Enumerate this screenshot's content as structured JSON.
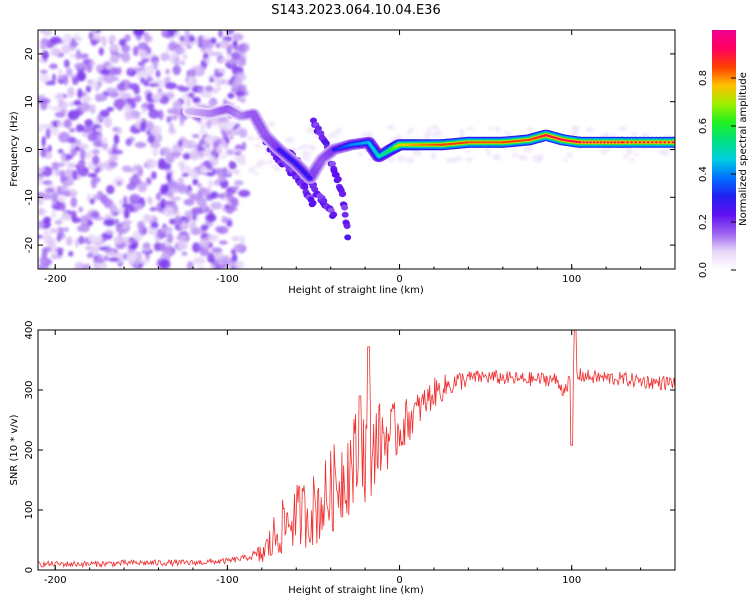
{
  "title": "S143.2023.064.10.04.E36",
  "chart_data": [
    {
      "type": "heatmap",
      "xlabel": "Height of straight line (km)",
      "ylabel": "Frequency (Hz)",
      "xlim": [
        -210,
        160
      ],
      "ylim": [
        -25,
        25
      ],
      "xticks": [
        -200,
        -100,
        0,
        100
      ],
      "yticks": [
        -20,
        -10,
        0,
        10,
        20
      ],
      "colorbar": {
        "label": "Normalized spectral amplitude",
        "range": [
          0,
          1
        ],
        "ticks": [
          0.0,
          0.2,
          0.4,
          0.6,
          0.8
        ],
        "colors": [
          "#ffffff",
          "#e8d8f8",
          "#9a60f0",
          "#6010f0",
          "#2020f0",
          "#0070ff",
          "#00d0e0",
          "#00e080",
          "#20f020",
          "#a0f000",
          "#ffc000",
          "#ff4000",
          "#ff0060",
          "#f00090"
        ]
      },
      "ridge": [
        {
          "x": -122,
          "y": 8,
          "v": 0.15
        },
        {
          "x": -110,
          "y": 7.5,
          "v": 0.2
        },
        {
          "x": -100,
          "y": 8.5,
          "v": 0.25
        },
        {
          "x": -92,
          "y": 7,
          "v": 0.2
        },
        {
          "x": -85,
          "y": 7.5,
          "v": 0.25
        },
        {
          "x": -78,
          "y": 3,
          "v": 0.25
        },
        {
          "x": -70,
          "y": 0,
          "v": 0.3
        },
        {
          "x": -60,
          "y": -3,
          "v": 0.3
        },
        {
          "x": -52,
          "y": -6,
          "v": 0.3
        },
        {
          "x": -45,
          "y": -2,
          "v": 0.25
        },
        {
          "x": -38,
          "y": 0,
          "v": 0.3
        },
        {
          "x": -28,
          "y": 1,
          "v": 0.4
        },
        {
          "x": -18,
          "y": 1.5,
          "v": 0.45
        },
        {
          "x": -12,
          "y": -1.5,
          "v": 0.5
        },
        {
          "x": -5,
          "y": 0,
          "v": 0.6
        },
        {
          "x": 0,
          "y": 1,
          "v": 0.75
        },
        {
          "x": 10,
          "y": 1,
          "v": 0.8
        },
        {
          "x": 25,
          "y": 1,
          "v": 0.85
        },
        {
          "x": 40,
          "y": 1.5,
          "v": 0.85
        },
        {
          "x": 60,
          "y": 1.5,
          "v": 0.85
        },
        {
          "x": 75,
          "y": 2,
          "v": 0.85
        },
        {
          "x": 85,
          "y": 3,
          "v": 0.9
        },
        {
          "x": 95,
          "y": 2,
          "v": 0.9
        },
        {
          "x": 105,
          "y": 1.5,
          "v": 0.9
        },
        {
          "x": 130,
          "y": 1.5,
          "v": 0.9
        },
        {
          "x": 160,
          "y": 1.5,
          "v": 0.9
        }
      ],
      "branches": [
        {
          "x": [
            -80,
            -70,
            -62,
            -55,
            -50
          ],
          "y": [
            3,
            -2,
            -5,
            -8,
            -12
          ]
        },
        {
          "x": [
            -65,
            -57,
            -50,
            -44,
            -38
          ],
          "y": [
            0,
            -4,
            -8,
            -11,
            -14
          ]
        },
        {
          "x": [
            -50,
            -44,
            -38,
            -33,
            -30
          ],
          "y": [
            6,
            2,
            -4,
            -10,
            -18
          ]
        }
      ]
    },
    {
      "type": "line",
      "xlabel": "Height of straight line (km)",
      "ylabel": "SNR (10 * v/v)",
      "xlim": [
        -210,
        160
      ],
      "ylim": [
        0,
        400
      ],
      "xticks": [
        -200,
        -100,
        0,
        100
      ],
      "yticks": [
        0,
        100,
        200,
        300,
        400
      ],
      "color": "#f03030",
      "x": [
        -210,
        -180,
        -150,
        -120,
        -100,
        -90,
        -80,
        -75,
        -70,
        -65,
        -60,
        -55,
        -50,
        -45,
        -40,
        -35,
        -30,
        -25,
        -20,
        -15,
        -10,
        -5,
        0,
        5,
        10,
        15,
        20,
        30,
        40,
        50,
        60,
        70,
        80,
        90,
        95,
        100,
        105,
        110,
        120,
        130,
        140,
        150,
        160
      ],
      "y": [
        10,
        10,
        12,
        12,
        15,
        20,
        25,
        45,
        65,
        80,
        90,
        95,
        100,
        110,
        130,
        150,
        170,
        185,
        195,
        210,
        220,
        225,
        235,
        250,
        265,
        280,
        295,
        310,
        320,
        322,
        320,
        318,
        318,
        318,
        300,
        320,
        325,
        322,
        320,
        318,
        315,
        312,
        312
      ],
      "spikes": [
        {
          "x": -18,
          "y": 372
        },
        {
          "x": -23,
          "y": 290
        },
        {
          "x": 102,
          "y": 400
        },
        {
          "x": 100,
          "y": 208
        }
      ]
    }
  ]
}
